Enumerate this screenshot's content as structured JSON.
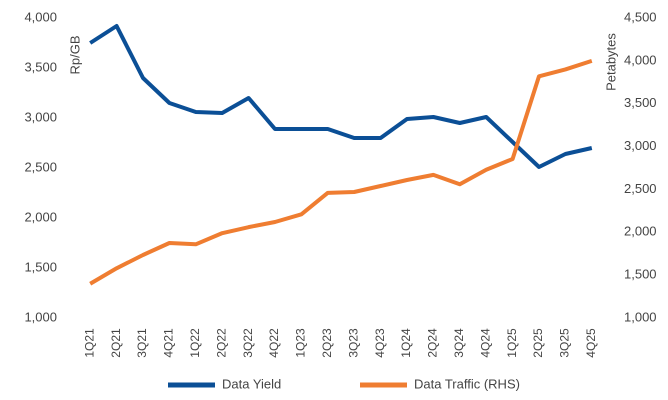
{
  "chart_data": {
    "type": "line",
    "categories": [
      "1Q21",
      "2Q21",
      "3Q21",
      "4Q21",
      "1Q22",
      "2Q22",
      "3Q22",
      "4Q22",
      "1Q23",
      "2Q23",
      "3Q23",
      "4Q23",
      "1Q24",
      "2Q24",
      "3Q24",
      "4Q24",
      "1Q25",
      "2Q25",
      "3Q25",
      "4Q25"
    ],
    "ylabel": "Rp/GB",
    "y2label": "Petabytes",
    "series": [
      {
        "name": "Data Yield",
        "color": "#0b4f96",
        "axis": "y",
        "values": [
          3750,
          3920,
          3400,
          3150,
          3060,
          3050,
          3200,
          2890,
          2890,
          2890,
          2800,
          2800,
          2990,
          3010,
          2950,
          3010,
          2760,
          2510,
          2640,
          2700
        ]
      },
      {
        "name": "Data Traffic (RHS)",
        "color": "#ef7d31",
        "axis": "y2",
        "values": [
          1400,
          1580,
          1735,
          1875,
          1860,
          1990,
          2060,
          2120,
          2210,
          2460,
          2470,
          2540,
          2610,
          2670,
          2560,
          2730,
          2855,
          3820,
          3900,
          4000
        ]
      }
    ],
    "ylim": [
      1000,
      4000
    ],
    "yticks": [
      {
        "value": 1000,
        "label": "1,000"
      },
      {
        "value": 1500,
        "label": "1,500"
      },
      {
        "value": 2000,
        "label": "2,000"
      },
      {
        "value": 2500,
        "label": "2,500"
      },
      {
        "value": 3000,
        "label": "3,000"
      },
      {
        "value": 3500,
        "label": "3,500"
      },
      {
        "value": 4000,
        "label": "4,000"
      }
    ],
    "y2lim": [
      1000,
      4500
    ],
    "y2ticks": [
      {
        "value": 1000,
        "label": "1,000"
      },
      {
        "value": 1500,
        "label": "1,500"
      },
      {
        "value": 2000,
        "label": "2,000"
      },
      {
        "value": 2500,
        "label": "2,500"
      },
      {
        "value": 3000,
        "label": "3,000"
      },
      {
        "value": 3500,
        "label": "3,500"
      },
      {
        "value": 4000,
        "label": "4,000"
      },
      {
        "value": 4500,
        "label": "4,500"
      }
    ],
    "legend": "bottom",
    "grid": false
  }
}
